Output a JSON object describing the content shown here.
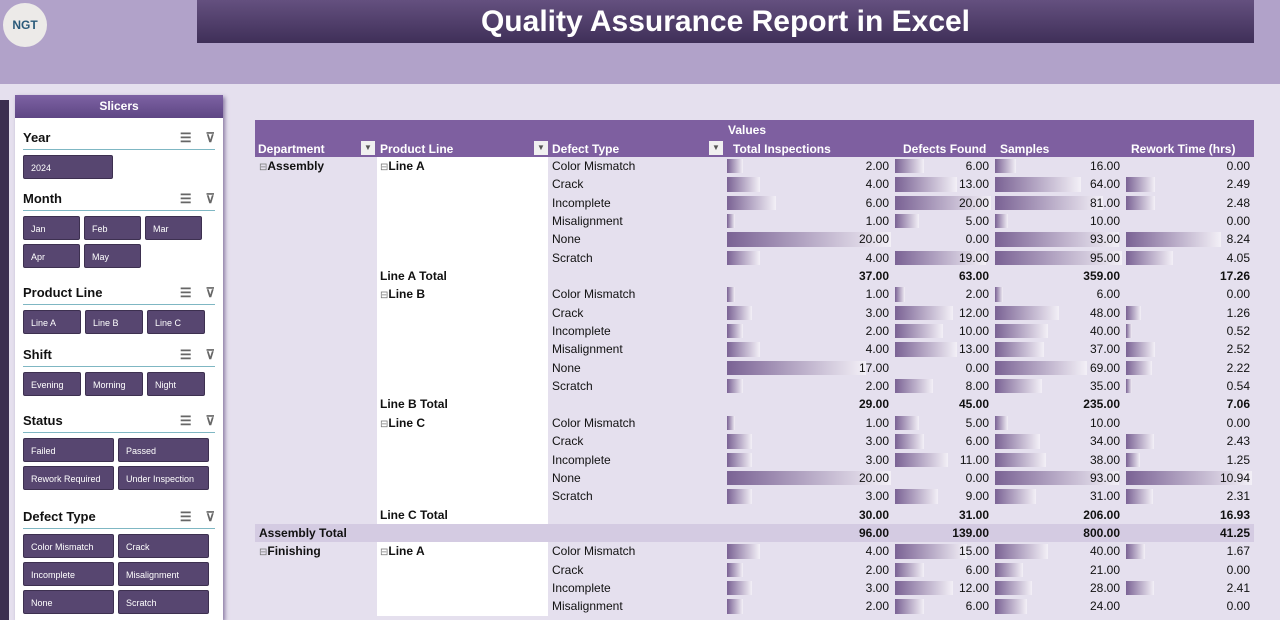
{
  "header": {
    "logo": "NGT",
    "title": "Quality Assurance Report in Excel"
  },
  "slicers": {
    "title": "Slicers",
    "sections": [
      {
        "name": "Year",
        "items": [
          "2024"
        ]
      },
      {
        "name": "Month",
        "items": [
          "Jan",
          "Feb",
          "Mar",
          "Apr",
          "May"
        ]
      },
      {
        "name": "Product Line",
        "items": [
          "Line A",
          "Line B",
          "Line C"
        ]
      },
      {
        "name": "Shift",
        "items": [
          "Evening",
          "Morning",
          "Night"
        ]
      },
      {
        "name": "Status",
        "items": [
          "Failed",
          "Passed",
          "Rework Required",
          "Under Inspection"
        ]
      },
      {
        "name": "Defect Type",
        "items": [
          "Color Mismatch",
          "Crack",
          "Incomplete",
          "Misalignment",
          "None",
          "Scratch"
        ]
      }
    ]
  },
  "pivot": {
    "values_label": "Values",
    "headers": [
      "Department",
      "Product Line",
      "Defect Type",
      "Total Inspections",
      "Defects Found",
      "Samples",
      "Rework Time (hrs)"
    ],
    "max": [
      20,
      20,
      95,
      10.94
    ],
    "rows": [
      {
        "d": "Assembly",
        "p": "Line A",
        "t": "Color Mismatch",
        "v": [
          "2.00",
          "6.00",
          "16.00",
          "0.00"
        ]
      },
      {
        "t": "Crack",
        "v": [
          "4.00",
          "13.00",
          "64.00",
          "2.49"
        ]
      },
      {
        "t": "Incomplete",
        "v": [
          "6.00",
          "20.00",
          "81.00",
          "2.48"
        ]
      },
      {
        "t": "Misalignment",
        "v": [
          "1.00",
          "5.00",
          "10.00",
          "0.00"
        ]
      },
      {
        "t": "None",
        "v": [
          "20.00",
          "0.00",
          "93.00",
          "8.24"
        ]
      },
      {
        "t": "Scratch",
        "v": [
          "4.00",
          "19.00",
          "95.00",
          "4.05"
        ]
      },
      {
        "pt": "Line A Total",
        "v": [
          "37.00",
          "63.00",
          "359.00",
          "17.26"
        ]
      },
      {
        "p": "Line B",
        "t": "Color Mismatch",
        "v": [
          "1.00",
          "2.00",
          "6.00",
          "0.00"
        ]
      },
      {
        "t": "Crack",
        "v": [
          "3.00",
          "12.00",
          "48.00",
          "1.26"
        ]
      },
      {
        "t": "Incomplete",
        "v": [
          "2.00",
          "10.00",
          "40.00",
          "0.52"
        ]
      },
      {
        "t": "Misalignment",
        "v": [
          "4.00",
          "13.00",
          "37.00",
          "2.52"
        ]
      },
      {
        "t": "None",
        "v": [
          "17.00",
          "0.00",
          "69.00",
          "2.22"
        ]
      },
      {
        "t": "Scratch",
        "v": [
          "2.00",
          "8.00",
          "35.00",
          "0.54"
        ]
      },
      {
        "pt": "Line B Total",
        "v": [
          "29.00",
          "45.00",
          "235.00",
          "7.06"
        ]
      },
      {
        "p": "Line C",
        "t": "Color Mismatch",
        "v": [
          "1.00",
          "5.00",
          "10.00",
          "0.00"
        ]
      },
      {
        "t": "Crack",
        "v": [
          "3.00",
          "6.00",
          "34.00",
          "2.43"
        ]
      },
      {
        "t": "Incomplete",
        "v": [
          "3.00",
          "11.00",
          "38.00",
          "1.25"
        ]
      },
      {
        "t": "None",
        "v": [
          "20.00",
          "0.00",
          "93.00",
          "10.94"
        ]
      },
      {
        "t": "Scratch",
        "v": [
          "3.00",
          "9.00",
          "31.00",
          "2.31"
        ]
      },
      {
        "pt": "Line C Total",
        "v": [
          "30.00",
          "31.00",
          "206.00",
          "16.93"
        ]
      },
      {
        "dt": "Assembly Total",
        "v": [
          "96.00",
          "139.00",
          "800.00",
          "41.25"
        ]
      },
      {
        "d": "Finishing",
        "p": "Line A",
        "t": "Color Mismatch",
        "v": [
          "4.00",
          "15.00",
          "40.00",
          "1.67"
        ]
      },
      {
        "t": "Crack",
        "v": [
          "2.00",
          "6.00",
          "21.00",
          "0.00"
        ]
      },
      {
        "t": "Incomplete",
        "v": [
          "3.00",
          "12.00",
          "28.00",
          "2.41"
        ]
      },
      {
        "t": "Misalignment",
        "v": [
          "2.00",
          "6.00",
          "24.00",
          "0.00"
        ]
      }
    ]
  }
}
